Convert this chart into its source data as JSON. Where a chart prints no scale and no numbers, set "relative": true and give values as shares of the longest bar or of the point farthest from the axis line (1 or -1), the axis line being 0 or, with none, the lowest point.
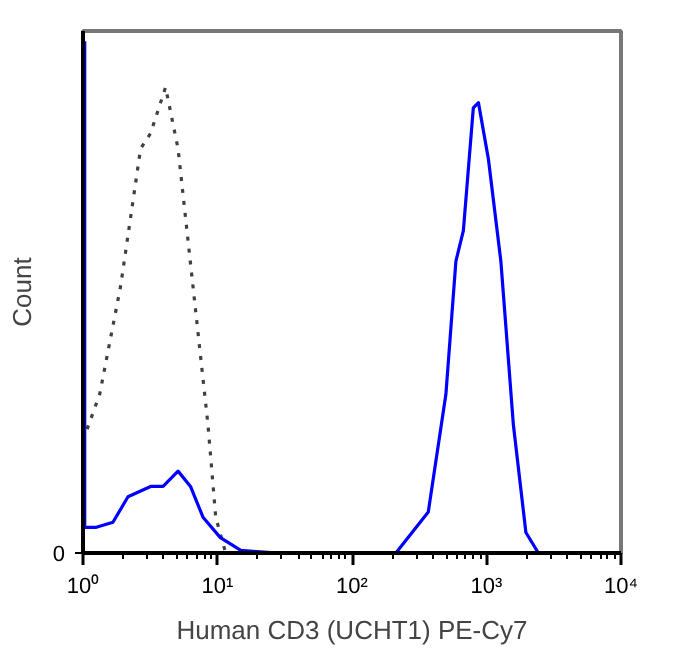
{
  "chart_data": {
    "type": "line",
    "xlabel": "Human CD3 (UCHT1) PE-Cy7",
    "ylabel": "Count",
    "relative": true,
    "log": "x",
    "xlim": [
      1,
      10000
    ],
    "xticks": [
      {
        "value": 1,
        "label": "10⁰"
      },
      {
        "value": 10,
        "label": "10¹"
      },
      {
        "value": 100,
        "label": "10²"
      },
      {
        "value": 1000,
        "label": "10³"
      },
      {
        "value": 10000,
        "label": "10⁴"
      }
    ],
    "tick_labels": "x",
    "grid": false,
    "annotations": [
      "0"
    ],
    "series": [
      {
        "color": "#404040",
        "line_style": "dotted",
        "x": [
          1,
          1.33,
          1.9,
          2.68,
          3.18,
          4.11,
          5.09,
          6.9,
          8.5,
          9.7,
          11.5
        ],
        "values": [
          0.22,
          0.31,
          0.52,
          0.79,
          0.82,
          0.91,
          0.79,
          0.47,
          0.25,
          0.07,
          0
        ]
      },
      {
        "color": "#0000ff",
        "line_style": "solid",
        "x": [
          1.03,
          1.03,
          1.24,
          1.67,
          2.16,
          3.18,
          3.94,
          5.09,
          6.3,
          7.8,
          10.5,
          14.9,
          28,
          212,
          369,
          499,
          592,
          673,
          798,
          871,
          1033,
          1279,
          1585,
          1963,
          2432,
          10000
        ],
        "values": [
          1,
          0.05,
          0.05,
          0.06,
          0.11,
          0.13,
          0.13,
          0.16,
          0.13,
          0.07,
          0.03,
          0.005,
          0,
          0,
          0.08,
          0.31,
          0.57,
          0.63,
          0.87,
          0.88,
          0.77,
          0.57,
          0.25,
          0.04,
          0,
          0
        ]
      }
    ]
  }
}
